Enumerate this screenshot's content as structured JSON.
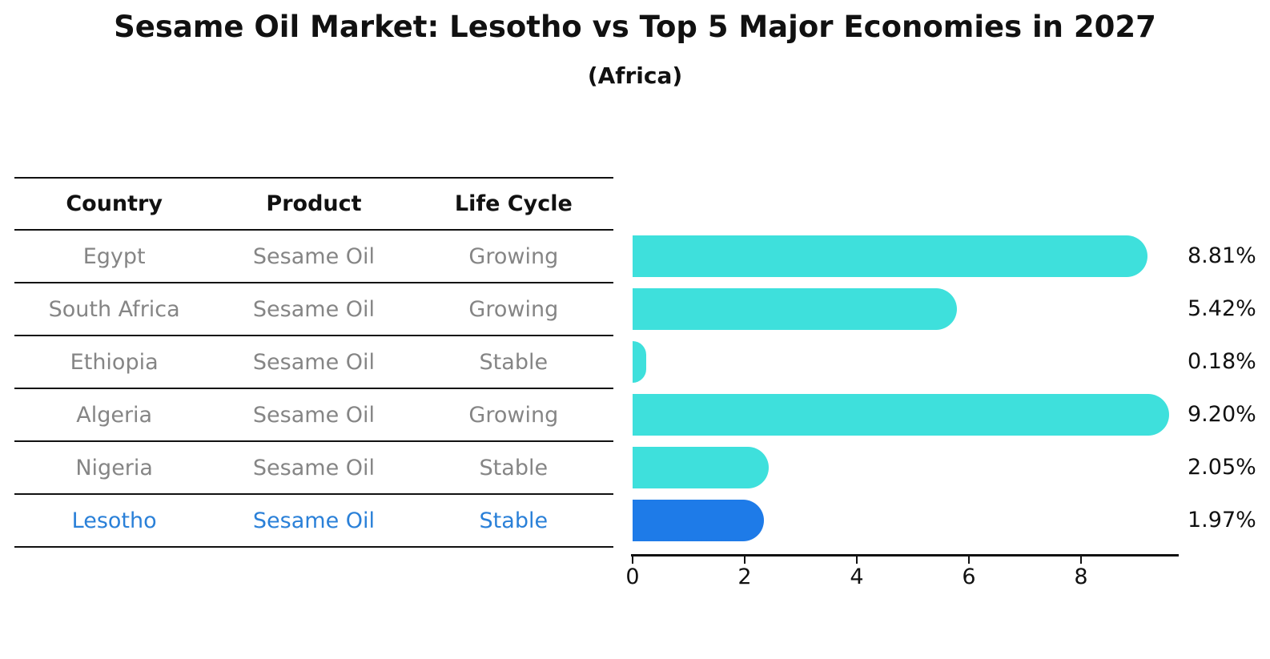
{
  "title": "Sesame Oil Market: Lesotho vs Top 5 Major Economies in 2027",
  "subtitle": "(Africa)",
  "table": {
    "headers": [
      "Country",
      "Product",
      "Life Cycle"
    ],
    "rows": [
      {
        "country": "Egypt",
        "product": "Sesame Oil",
        "life_cycle": "Growing",
        "highlighted": false
      },
      {
        "country": "South Africa",
        "product": "Sesame Oil",
        "life_cycle": "Growing",
        "highlighted": false
      },
      {
        "country": "Ethiopia",
        "product": "Sesame Oil",
        "life_cycle": "Stable",
        "highlighted": false
      },
      {
        "country": "Algeria",
        "product": "Sesame Oil",
        "life_cycle": "Growing",
        "highlighted": false
      },
      {
        "country": "Nigeria",
        "product": "Sesame Oil",
        "life_cycle": "Stable",
        "highlighted": false
      },
      {
        "country": "Lesotho",
        "product": "Sesame Oil",
        "life_cycle": "Stable",
        "highlighted": true
      }
    ]
  },
  "chart_data": {
    "type": "bar",
    "orientation": "horizontal",
    "title": "Sesame Oil Market: Lesotho vs Top 5 Major Economies in 2027",
    "subtitle": "(Africa)",
    "categories": [
      "Egypt",
      "South Africa",
      "Ethiopia",
      "Algeria",
      "Nigeria",
      "Lesotho"
    ],
    "values": [
      8.81,
      5.42,
      0.18,
      9.2,
      2.05,
      1.97
    ],
    "value_labels": [
      "8.81%",
      "5.42%",
      "0.18%",
      "9.20%",
      "2.05%",
      "1.97%"
    ],
    "xticks": [
      0,
      2,
      4,
      6,
      8
    ],
    "xlim": [
      0,
      9.7
    ],
    "grid": false,
    "legend": false,
    "bar_color": "#3EE0DC",
    "highlight_color": "#1E7BE8",
    "highlight_index": 5,
    "highlight_style": "dotted-border"
  },
  "colors": {
    "background": "#FFFFFF",
    "title_text": "#111111",
    "header_text": "#111111",
    "cell_text": "#858585",
    "highlight_text": "#2A80D8",
    "axis": "#111111",
    "bar": "#3EE0DC",
    "highlight_bar": "#1E7BE8"
  }
}
